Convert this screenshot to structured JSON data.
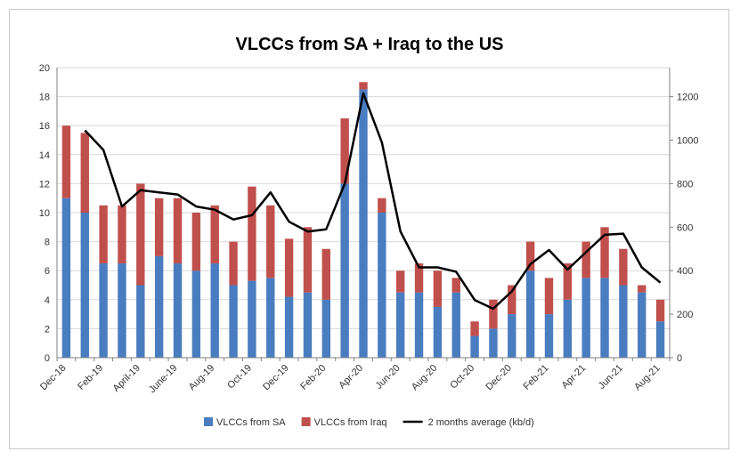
{
  "chart_data": {
    "type": "bar",
    "title": "VLCCs from SA + Iraq to the US",
    "xlabel": "",
    "ylabel": "",
    "y2label": "",
    "stacked": true,
    "ylim": [
      0,
      20
    ],
    "yticks": [
      0,
      2,
      4,
      6,
      8,
      10,
      12,
      14,
      16,
      18,
      20
    ],
    "y2lim": [
      0,
      1333.33
    ],
    "y2ticks": [
      0,
      200,
      400,
      600,
      800,
      1000,
      1200
    ],
    "grid": true,
    "legend_position": "bottom",
    "categories": [
      "Dec-18",
      "Jan-19",
      "Feb-19",
      "Mar-19",
      "April-19",
      "May-19",
      "June-19",
      "Jul-19",
      "Aug-19",
      "Sep-19",
      "Oct-19",
      "Nov-19",
      "Dec-19",
      "Jan-20",
      "Feb-20",
      "Mar-20",
      "Apr-20",
      "May-20",
      "Jun-20",
      "Jul-20",
      "Aug-20",
      "Sep-20",
      "Oct-20",
      "Nov-20",
      "Dec-20",
      "Jan-21",
      "Feb-21",
      "Mar-21",
      "Apr-21",
      "May-21",
      "Jun-21",
      "Jul-21",
      "Aug-21"
    ],
    "tick_labels_shown": [
      "Dec-18",
      "Feb-19",
      "April-19",
      "June-19",
      "Aug-19",
      "Oct-19",
      "Dec-19",
      "Feb-20",
      "Apr-20",
      "Jun-20",
      "Aug-20",
      "Oct-20",
      "Dec-20",
      "Feb-21",
      "Apr-21",
      "Jun-21",
      "Aug-21"
    ],
    "series": [
      {
        "name": "VLCCs from SA",
        "kind": "bar",
        "axis": "left",
        "color": "#4a7cc0",
        "values": [
          11,
          10,
          6.5,
          6.5,
          5,
          7,
          6.5,
          6,
          6.5,
          5,
          5.3,
          5.5,
          4.2,
          4.5,
          4,
          12,
          18.5,
          10,
          4.5,
          4.5,
          3.5,
          4.5,
          1.5,
          2,
          3,
          6,
          3,
          4,
          5.5,
          5.5,
          5,
          4.5,
          2.5
        ]
      },
      {
        "name": "VLCCs from Iraq",
        "kind": "bar",
        "axis": "left",
        "color": "#c0504d",
        "values": [
          5,
          5.5,
          4,
          4,
          7,
          4,
          4.5,
          4,
          4,
          3,
          6.5,
          5,
          4,
          4.5,
          3.5,
          4.5,
          0.5,
          1,
          1.5,
          2,
          2.5,
          1,
          1,
          2,
          2,
          2,
          2.5,
          2.5,
          2.5,
          3.5,
          2.5,
          0.5,
          1.5
        ]
      },
      {
        "name": "2 months average (kb/d)",
        "kind": "line",
        "axis": "right",
        "color": "#000000",
        "values": [
          null,
          1045,
          955,
          695,
          770,
          760,
          750,
          695,
          680,
          635,
          655,
          760,
          625,
          580,
          590,
          800,
          1215,
          990,
          580,
          415,
          415,
          395,
          265,
          225,
          305,
          430,
          495,
          405,
          485,
          565,
          570,
          415,
          345
        ]
      }
    ]
  }
}
